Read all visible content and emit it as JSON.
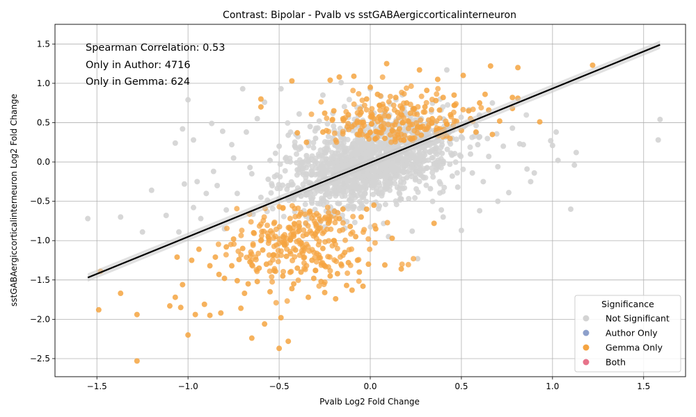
{
  "chart_data": {
    "type": "scatter",
    "title": "Contrast: Bipolar - Pvalb vs sstGABAergiccorticalinterneuron",
    "xlabel": "Pvalb Log2 Fold Change",
    "ylabel": "sstGABAergiccorticalinterneuron Log2 Fold Change",
    "xlim": [
      -1.73,
      1.73
    ],
    "ylim": [
      -2.73,
      1.75
    ],
    "x_ticks": [
      "−1.5",
      "−1.0",
      "−0.5",
      "0.0",
      "0.5",
      "1.0",
      "1.5"
    ],
    "x_tick_values": [
      -1.5,
      -1.0,
      -0.5,
      0.0,
      0.5,
      1.0,
      1.5
    ],
    "y_ticks": [
      "−2.5",
      "−2.0",
      "−1.5",
      "−1.0",
      "−0.5",
      "0.0",
      "0.5",
      "1.0",
      "1.5"
    ],
    "y_tick_values": [
      -2.5,
      -2.0,
      -1.5,
      -1.0,
      -0.5,
      0.0,
      0.5,
      1.0,
      1.5
    ],
    "grid": true,
    "annotations": [
      "Spearman Correlation: 0.53",
      "Only in Author: 4716",
      "Only in Gemma: 624"
    ],
    "regression_line": {
      "x": [
        -1.55,
        1.59
      ],
      "y": [
        -1.47,
        1.49
      ]
    },
    "legend": {
      "title": "Significance",
      "placement": "lower-right",
      "entries": [
        {
          "name": "Not Significant",
          "color": "#d3d3d3"
        },
        {
          "name": "Author Only",
          "color": "#8da0cb"
        },
        {
          "name": "Gemma Only",
          "color": "#f5a441"
        },
        {
          "name": "Both",
          "color": "#e7738a"
        }
      ]
    },
    "series": [
      {
        "name": "Not Significant",
        "color": "#d3d3d3",
        "points": [
          [
            -1.55,
            -0.72
          ],
          [
            -1.37,
            -0.7
          ],
          [
            -1.25,
            -0.89
          ],
          [
            -1.2,
            -0.36
          ],
          [
            -1.12,
            -0.68
          ],
          [
            -1.07,
            0.24
          ],
          [
            -1.05,
            -0.89
          ],
          [
            -1.03,
            0.42
          ],
          [
            -1.02,
            -0.28
          ],
          [
            -1.0,
            0.79
          ],
          [
            -0.97,
            0.28
          ],
          [
            -0.97,
            -0.58
          ],
          [
            -0.95,
            -0.25
          ],
          [
            -0.93,
            -0.72
          ],
          [
            -0.87,
            0.49
          ],
          [
            -0.86,
            -0.12
          ],
          [
            -0.84,
            -0.3
          ],
          [
            -0.81,
            0.39
          ],
          [
            -0.79,
            -0.61
          ],
          [
            -0.76,
            0.22
          ],
          [
            -0.73,
            -0.4
          ],
          [
            -0.7,
            0.93
          ],
          [
            -0.68,
            0.38
          ],
          [
            -0.66,
            -0.07
          ],
          [
            -0.62,
            0.55
          ],
          [
            -0.58,
            0.76
          ],
          [
            -0.56,
            -0.22
          ],
          [
            -0.52,
            0.11
          ],
          [
            -0.49,
            0.93
          ],
          [
            -0.45,
            0.34
          ],
          [
            -0.42,
            -0.48
          ],
          [
            -0.39,
            0.61
          ],
          [
            -0.35,
            0.08
          ],
          [
            -0.32,
            -0.29
          ],
          [
            -0.28,
            0.52
          ],
          [
            -0.26,
            0.85
          ],
          [
            -0.22,
            0.25
          ],
          [
            -0.2,
            -0.63
          ],
          [
            -0.16,
            1.01
          ],
          [
            -0.14,
            0.13
          ],
          [
            -0.1,
            -0.38
          ],
          [
            -0.07,
            0.46
          ],
          [
            -0.04,
            -0.12
          ],
          [
            0.0,
            0.93
          ],
          [
            0.02,
            0.28
          ],
          [
            0.05,
            -0.56
          ],
          [
            0.08,
            0.62
          ],
          [
            0.11,
            -0.21
          ],
          [
            0.14,
            0.38
          ],
          [
            0.17,
            -0.47
          ],
          [
            0.2,
            0.1
          ],
          [
            0.23,
            -0.88
          ],
          [
            0.26,
            -1.23
          ],
          [
            0.28,
            0.55
          ],
          [
            0.31,
            -0.08
          ],
          [
            0.33,
            -0.34
          ],
          [
            0.36,
            0.17
          ],
          [
            0.39,
            -0.61
          ],
          [
            0.42,
            1.17
          ],
          [
            0.45,
            0.3
          ],
          [
            0.48,
            -0.32
          ],
          [
            0.5,
            -0.87
          ],
          [
            0.53,
            0.49
          ],
          [
            0.56,
            -0.14
          ],
          [
            0.59,
            0.22
          ],
          [
            0.62,
            -0.25
          ],
          [
            0.65,
            0.07
          ],
          [
            0.67,
            0.75
          ],
          [
            0.7,
            -0.06
          ],
          [
            0.73,
            0.2
          ],
          [
            0.76,
            -0.39
          ],
          [
            0.78,
            0.43
          ],
          [
            0.82,
            0.23
          ],
          [
            0.84,
            0.22
          ],
          [
            0.86,
            -0.09
          ],
          [
            0.88,
            -0.25
          ],
          [
            0.9,
            -0.14
          ],
          [
            0.99,
            0.27
          ],
          [
            1.0,
            0.21
          ],
          [
            1.02,
            0.38
          ],
          [
            1.03,
            0.02
          ],
          [
            1.1,
            -0.6
          ],
          [
            1.12,
            -0.04
          ],
          [
            1.13,
            0.12
          ],
          [
            1.58,
            0.28
          ],
          [
            1.59,
            0.54
          ],
          [
            -0.6,
            -0.45
          ],
          [
            -0.5,
            0.2
          ],
          [
            -0.4,
            -0.1
          ],
          [
            -0.3,
            0.3
          ],
          [
            -0.2,
            -0.15
          ],
          [
            -0.1,
            0.18
          ],
          [
            0.0,
            -0.05
          ],
          [
            0.1,
            0.22
          ],
          [
            0.2,
            -0.2
          ],
          [
            0.3,
            0.14
          ],
          [
            0.4,
            -0.02
          ],
          [
            -0.55,
            0.02
          ],
          [
            -0.45,
            -0.3
          ],
          [
            -0.35,
            -0.42
          ],
          [
            -0.25,
            0.12
          ],
          [
            -0.15,
            -0.28
          ],
          [
            -0.05,
            0.05
          ],
          [
            0.05,
            0.35
          ],
          [
            0.15,
            0.02
          ],
          [
            0.25,
            -0.12
          ],
          [
            0.35,
            0.4
          ],
          [
            0.45,
            -0.18
          ],
          [
            0.55,
            0.1
          ],
          [
            0.6,
            0.32
          ],
          [
            -0.8,
            -0.85
          ],
          [
            -0.9,
            -0.4
          ],
          [
            -0.75,
            0.05
          ],
          [
            -0.65,
            -0.15
          ],
          [
            0.7,
            -0.5
          ],
          [
            0.6,
            -0.62
          ],
          [
            0.4,
            -0.7
          ],
          [
            0.1,
            -0.95
          ],
          [
            -0.05,
            0.7
          ],
          [
            -0.33,
            0.45
          ]
        ]
      },
      {
        "name": "Gemma Only",
        "color": "#f5a441",
        "points": [
          [
            -1.28,
            -2.53
          ],
          [
            -1.28,
            -1.94
          ],
          [
            -1.49,
            -1.88
          ],
          [
            -1.48,
            -1.39
          ],
          [
            -1.37,
            -1.67
          ],
          [
            -1.1,
            -1.83
          ],
          [
            -1.07,
            -1.72
          ],
          [
            -1.06,
            -1.21
          ],
          [
            -1.04,
            -1.85
          ],
          [
            -1.03,
            -1.56
          ],
          [
            -1.0,
            -2.2
          ],
          [
            -0.98,
            -1.25
          ],
          [
            -0.96,
            -1.94
          ],
          [
            -0.94,
            -1.11
          ],
          [
            -0.91,
            -1.81
          ],
          [
            -0.88,
            -1.95
          ],
          [
            -0.85,
            -1.21
          ],
          [
            -0.83,
            -1.43
          ],
          [
            -0.82,
            -1.92
          ],
          [
            -0.79,
            -1.08
          ],
          [
            -0.76,
            -1.32
          ],
          [
            -0.73,
            -1.51
          ],
          [
            -0.71,
            -1.86
          ],
          [
            -0.69,
            -1.67
          ],
          [
            -0.66,
            -1.27
          ],
          [
            -0.65,
            -2.24
          ],
          [
            -0.62,
            -1.52
          ],
          [
            -0.59,
            -1.12
          ],
          [
            -0.58,
            -2.06
          ],
          [
            -0.55,
            -1.65
          ],
          [
            -0.52,
            -1.39
          ],
          [
            -0.5,
            -2.37
          ],
          [
            -0.49,
            -1.98
          ],
          [
            -0.46,
            -1.2
          ],
          [
            -0.45,
            -2.28
          ],
          [
            -0.43,
            -1.61
          ],
          [
            -0.4,
            -1.35
          ],
          [
            -0.37,
            -1.08
          ],
          [
            -0.34,
            -1.72
          ],
          [
            -0.31,
            -1.48
          ],
          [
            -0.28,
            -1.22
          ],
          [
            -0.25,
            -1.66
          ],
          [
            -0.22,
            -1.45
          ],
          [
            -0.19,
            -1.74
          ],
          [
            -0.16,
            -1.3
          ],
          [
            -0.13,
            -1.57
          ],
          [
            -0.1,
            -1.63
          ],
          [
            -0.07,
            -1.25
          ],
          [
            -0.04,
            -1.58
          ],
          [
            -0.01,
            -1.3
          ],
          [
            0.03,
            -0.85
          ],
          [
            0.08,
            -1.31
          ],
          [
            0.12,
            -0.97
          ],
          [
            0.17,
            -1.36
          ],
          [
            0.35,
            -0.78
          ],
          [
            -0.6,
            0.8
          ],
          [
            -0.6,
            0.7
          ],
          [
            -0.43,
            1.03
          ],
          [
            -0.22,
            1.04
          ],
          [
            -0.09,
            1.09
          ],
          [
            -0.17,
            1.08
          ],
          [
            0.09,
            1.25
          ],
          [
            0.27,
            1.17
          ],
          [
            0.37,
            1.05
          ],
          [
            0.51,
            1.1
          ],
          [
            0.66,
            1.22
          ],
          [
            0.81,
            1.2
          ],
          [
            1.22,
            1.23
          ],
          [
            0.78,
            0.82
          ],
          [
            0.81,
            0.81
          ],
          [
            0.93,
            0.51
          ],
          [
            0.71,
            0.52
          ],
          [
            0.78,
            0.68
          ],
          [
            0.6,
            0.75
          ],
          [
            0.54,
            0.65
          ],
          [
            0.63,
            0.86
          ],
          [
            0.46,
            0.85
          ],
          [
            0.4,
            0.82
          ],
          [
            0.31,
            0.91
          ],
          [
            0.2,
            0.75
          ],
          [
            0.15,
            0.63
          ],
          [
            0.1,
            0.58
          ],
          [
            0.05,
            0.72
          ],
          [
            0.0,
            0.95
          ],
          [
            -0.05,
            0.63
          ],
          [
            -0.1,
            0.45
          ],
          [
            -0.15,
            0.55
          ],
          [
            -0.2,
            0.65
          ],
          [
            -0.26,
            0.38
          ],
          [
            -0.4,
            0.37
          ],
          [
            -0.88,
            -1.32
          ],
          [
            -0.8,
            -1.48
          ],
          [
            -0.75,
            -0.98
          ],
          [
            -0.7,
            -1.1
          ],
          [
            -0.64,
            -0.9
          ],
          [
            -0.61,
            -1.35
          ],
          [
            -0.56,
            -0.95
          ],
          [
            -0.53,
            -1.18
          ],
          [
            -0.48,
            -1.45
          ],
          [
            -0.44,
            -0.85
          ],
          [
            -0.41,
            -1.12
          ],
          [
            -0.38,
            -1.4
          ],
          [
            -0.35,
            -0.92
          ],
          [
            -0.32,
            -1.25
          ],
          [
            -0.29,
            -0.88
          ],
          [
            -0.26,
            -1.1
          ],
          [
            -0.23,
            -0.78
          ],
          [
            -0.2,
            -1.0
          ],
          [
            -0.17,
            -0.72
          ],
          [
            -0.14,
            -1.15
          ],
          [
            -0.11,
            -0.82
          ],
          [
            -0.08,
            -0.95
          ],
          [
            -0.05,
            -0.7
          ],
          [
            -0.02,
            -0.6
          ],
          [
            0.02,
            -0.55
          ],
          [
            -0.72,
            -1.24
          ],
          [
            -0.67,
            -1.55
          ],
          [
            -0.57,
            -1.3
          ],
          [
            -0.47,
            -1.05
          ],
          [
            -0.42,
            -1.55
          ],
          [
            -0.3,
            -1.38
          ],
          [
            -0.27,
            -1.52
          ],
          [
            -0.18,
            -1.42
          ],
          [
            -0.12,
            -1.28
          ],
          [
            -0.06,
            -1.4
          ],
          [
            -0.15,
            -0.6
          ],
          [
            0.02,
            0.55
          ],
          [
            0.06,
            0.45
          ],
          [
            0.12,
            0.4
          ],
          [
            0.18,
            0.5
          ],
          [
            0.22,
            0.62
          ],
          [
            0.26,
            0.45
          ],
          [
            0.3,
            0.7
          ],
          [
            0.34,
            0.55
          ],
          [
            0.38,
            0.66
          ],
          [
            0.42,
            0.48
          ],
          [
            0.46,
            0.72
          ],
          [
            0.5,
            0.4
          ],
          [
            0.55,
            0.55
          ],
          [
            0.58,
            0.38
          ],
          [
            0.65,
            0.66
          ],
          [
            0.67,
            0.35
          ],
          [
            -0.02,
            0.8
          ],
          [
            0.04,
            0.86
          ],
          [
            0.14,
            0.82
          ],
          [
            0.24,
            0.68
          ],
          [
            0.36,
            0.78
          ],
          [
            -0.07,
            0.35
          ],
          [
            -0.12,
            0.6
          ],
          [
            0.08,
            0.3
          ],
          [
            0.16,
            0.42
          ],
          [
            0.28,
            0.34
          ],
          [
            0.44,
            0.6
          ],
          [
            -0.35,
            0.25
          ],
          [
            -0.25,
            0.62
          ]
        ]
      }
    ]
  }
}
